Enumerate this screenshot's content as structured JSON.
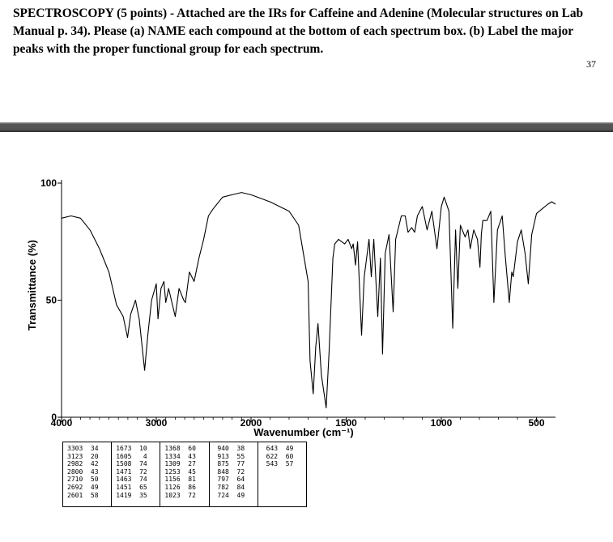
{
  "question": {
    "text": "SPECTROSCOPY (5 points) - Attached are the IRs for Caffeine and Adenine (Molecular structures on Lab Manual p. 34). Please (a) NAME each compound at the bottom of each spectrum box. (b) Label the major peaks with the proper functional group for each spectrum."
  },
  "page_number": "37",
  "chart_data": {
    "type": "line",
    "xlabel": "Wavenumber (cm⁻¹)",
    "ylabel": "Transmittance (%)",
    "xlim": [
      4000,
      400
    ],
    "ylim": [
      0,
      100
    ],
    "x_ticks": [
      {
        "value": 4000,
        "label": "4000"
      },
      {
        "value": 3000,
        "label": "3000"
      },
      {
        "value": 2000,
        "label": "2000"
      },
      {
        "value": 1500,
        "label": "1500"
      },
      {
        "value": 1000,
        "label": "1000"
      },
      {
        "value": 500,
        "label": "500"
      }
    ],
    "y_ticks": [
      {
        "value": 100,
        "label": "100"
      },
      {
        "value": 50,
        "label": "50"
      },
      {
        "value": 0,
        "label": "0"
      }
    ],
    "series": [
      {
        "points": [
          [
            4000,
            85
          ],
          [
            3900,
            86
          ],
          [
            3800,
            85
          ],
          [
            3700,
            80
          ],
          [
            3600,
            72
          ],
          [
            3500,
            62
          ],
          [
            3420,
            48
          ],
          [
            3350,
            43
          ],
          [
            3303,
            34
          ],
          [
            3270,
            44
          ],
          [
            3220,
            50
          ],
          [
            3180,
            42
          ],
          [
            3123,
            20
          ],
          [
            3090,
            35
          ],
          [
            3050,
            50
          ],
          [
            3000,
            57
          ],
          [
            2982,
            42
          ],
          [
            2950,
            55
          ],
          [
            2920,
            58
          ],
          [
            2900,
            49
          ],
          [
            2870,
            55
          ],
          [
            2800,
            43
          ],
          [
            2760,
            55
          ],
          [
            2710,
            50
          ],
          [
            2692,
            49
          ],
          [
            2650,
            62
          ],
          [
            2601,
            58
          ],
          [
            2550,
            68
          ],
          [
            2500,
            76
          ],
          [
            2450,
            86
          ],
          [
            2400,
            89
          ],
          [
            2300,
            94
          ],
          [
            2200,
            95
          ],
          [
            2100,
            96
          ],
          [
            2000,
            95
          ],
          [
            1900,
            92
          ],
          [
            1800,
            88
          ],
          [
            1750,
            82
          ],
          [
            1700,
            58
          ],
          [
            1690,
            24
          ],
          [
            1673,
            10
          ],
          [
            1660,
            30
          ],
          [
            1648,
            40
          ],
          [
            1630,
            18
          ],
          [
            1605,
            4
          ],
          [
            1590,
            28
          ],
          [
            1570,
            68
          ],
          [
            1560,
            74
          ],
          [
            1540,
            76
          ],
          [
            1508,
            74
          ],
          [
            1490,
            76
          ],
          [
            1471,
            72
          ],
          [
            1463,
            74
          ],
          [
            1451,
            65
          ],
          [
            1440,
            75
          ],
          [
            1419,
            35
          ],
          [
            1405,
            60
          ],
          [
            1380,
            76
          ],
          [
            1368,
            60
          ],
          [
            1355,
            76
          ],
          [
            1334,
            43
          ],
          [
            1320,
            68
          ],
          [
            1309,
            27
          ],
          [
            1295,
            70
          ],
          [
            1275,
            78
          ],
          [
            1253,
            45
          ],
          [
            1240,
            76
          ],
          [
            1210,
            86
          ],
          [
            1190,
            86
          ],
          [
            1175,
            79
          ],
          [
            1156,
            81
          ],
          [
            1140,
            79
          ],
          [
            1126,
            86
          ],
          [
            1100,
            90
          ],
          [
            1075,
            80
          ],
          [
            1050,
            88
          ],
          [
            1023,
            72
          ],
          [
            1000,
            90
          ],
          [
            985,
            94
          ],
          [
            960,
            88
          ],
          [
            940,
            38
          ],
          [
            925,
            80
          ],
          [
            913,
            55
          ],
          [
            900,
            82
          ],
          [
            875,
            77
          ],
          [
            860,
            80
          ],
          [
            848,
            72
          ],
          [
            830,
            80
          ],
          [
            810,
            76
          ],
          [
            797,
            64
          ],
          [
            790,
            78
          ],
          [
            782,
            84
          ],
          [
            760,
            84
          ],
          [
            740,
            88
          ],
          [
            724,
            49
          ],
          [
            705,
            80
          ],
          [
            680,
            86
          ],
          [
            665,
            70
          ],
          [
            643,
            49
          ],
          [
            630,
            62
          ],
          [
            622,
            60
          ],
          [
            600,
            75
          ],
          [
            580,
            80
          ],
          [
            560,
            70
          ],
          [
            543,
            57
          ],
          [
            525,
            78
          ],
          [
            500,
            87
          ],
          [
            470,
            89
          ],
          [
            440,
            91
          ],
          [
            420,
            92
          ],
          [
            400,
            91
          ]
        ]
      }
    ]
  },
  "peak_table": {
    "columns": [
      [
        [
          "3303",
          "34"
        ],
        [
          "3123",
          "20"
        ],
        [
          "2982",
          "42"
        ],
        [
          "2800",
          "43"
        ],
        [
          "2710",
          "50"
        ],
        [
          "2692",
          "49"
        ],
        [
          "2601",
          "58"
        ]
      ],
      [
        [
          "1673",
          "10"
        ],
        [
          "1605",
          "4"
        ],
        [
          "1508",
          "74"
        ],
        [
          "1471",
          "72"
        ],
        [
          "1463",
          "74"
        ],
        [
          "1451",
          "65"
        ],
        [
          "1419",
          "35"
        ]
      ],
      [
        [
          "1368",
          "60"
        ],
        [
          "1334",
          "43"
        ],
        [
          "1309",
          "27"
        ],
        [
          "1253",
          "45"
        ],
        [
          "1156",
          "81"
        ],
        [
          "1126",
          "86"
        ],
        [
          "1023",
          "72"
        ]
      ],
      [
        [
          "940",
          "38"
        ],
        [
          "913",
          "55"
        ],
        [
          "875",
          "77"
        ],
        [
          "848",
          "72"
        ],
        [
          "797",
          "64"
        ],
        [
          "782",
          "84"
        ],
        [
          "724",
          "49"
        ]
      ],
      [
        [
          "643",
          "49"
        ],
        [
          "622",
          "60"
        ],
        [
          "543",
          "57"
        ]
      ]
    ]
  }
}
